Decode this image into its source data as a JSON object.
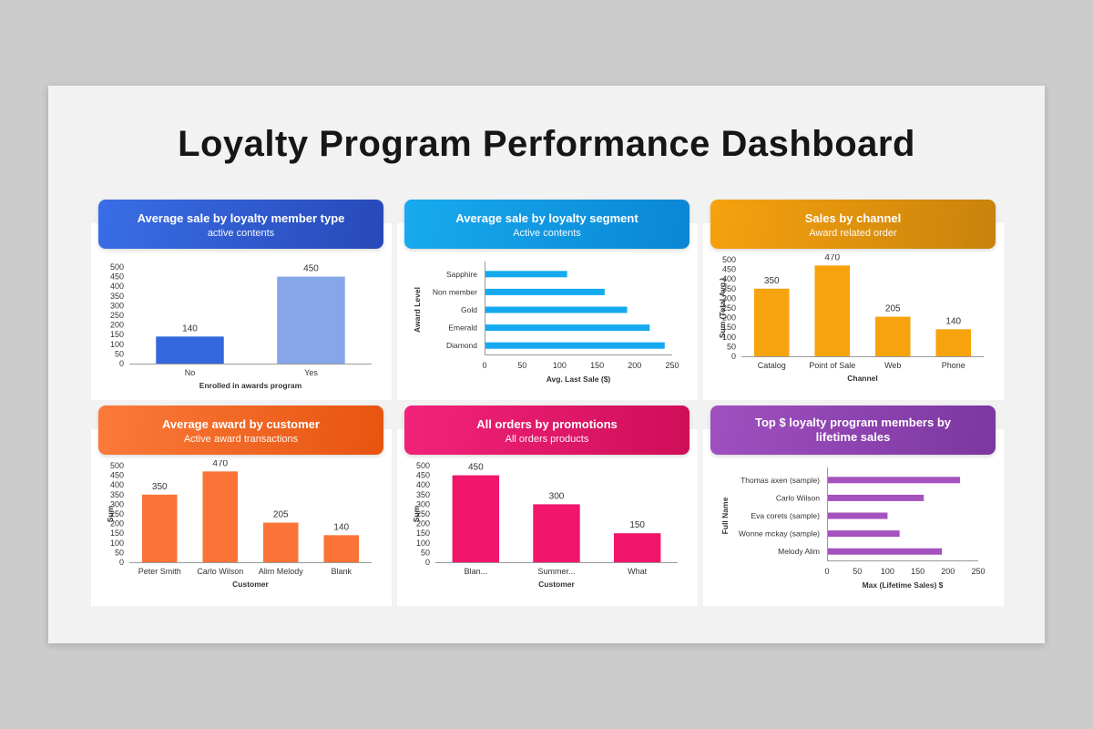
{
  "page": {
    "title": "Loyalty Program Performance Dashboard"
  },
  "cards": [
    {
      "title": "Average sale by loyalty member type",
      "subtitle": "active contents",
      "color1": "#3a6ee6",
      "color2": "#2749b8"
    },
    {
      "title": "Average sale by loyalty segment",
      "subtitle": "Active contents",
      "color1": "#18aaee",
      "color2": "#0a86d4"
    },
    {
      "title": "Sales by channel",
      "subtitle": "Award related order",
      "color1": "#f6a20e",
      "color2": "#c8820c"
    },
    {
      "title": "Average award by customer",
      "subtitle": "Active award transactions",
      "color1": "#fb7a3a",
      "color2": "#e7540f"
    },
    {
      "title": "All orders by promotions",
      "subtitle": "All orders products",
      "color1": "#f2237a",
      "color2": "#cf0e58"
    },
    {
      "title": "Top $ loyalty program members by lifetime sales",
      "subtitle": "",
      "color1": "#a050c0",
      "color2": "#7c37a0"
    }
  ],
  "chart_data": [
    {
      "type": "bar",
      "orientation": "vertical",
      "categories": [
        "No",
        "Yes"
      ],
      "values": [
        140,
        450
      ],
      "xlabel": "Enrolled in awards program",
      "ylabel": "",
      "ylim": [
        0,
        500
      ],
      "yticks": [
        0,
        50,
        100,
        150,
        200,
        250,
        300,
        350,
        400,
        450,
        500
      ],
      "colors": [
        "#3567dd",
        "#86a6e9"
      ],
      "data_labels": true
    },
    {
      "type": "bar",
      "orientation": "horizontal",
      "categories": [
        "Sapphire",
        "Non member",
        "Gold",
        "Emerald",
        "Diamond"
      ],
      "values": [
        110,
        160,
        190,
        220,
        240
      ],
      "xlabel": "Avg. Last Sale ($)",
      "ylabel": "Award Level",
      "xlim": [
        0,
        250
      ],
      "xticks": [
        0,
        50,
        100,
        150,
        200,
        250
      ],
      "color": "#15aaf0",
      "data_labels": false
    },
    {
      "type": "bar",
      "orientation": "vertical",
      "categories": [
        "Catalog",
        "Point of Sale",
        "Web",
        "Phone"
      ],
      "values": [
        350,
        470,
        205,
        140
      ],
      "xlabel": "Channel",
      "ylabel": "Sum (Total Avg.)",
      "ylim": [
        0,
        500
      ],
      "yticks": [
        0,
        50,
        100,
        150,
        200,
        250,
        300,
        350,
        400,
        450,
        500
      ],
      "color": "#f7a30d",
      "data_labels": true
    },
    {
      "type": "bar",
      "orientation": "vertical",
      "categories": [
        "Peter Smith",
        "Carlo Wilson",
        "Alim Melody",
        "Blank"
      ],
      "values": [
        350,
        470,
        205,
        140
      ],
      "xlabel": "Customer",
      "ylabel": "Sum",
      "ylim": [
        0,
        500
      ],
      "yticks": [
        0,
        50,
        100,
        150,
        200,
        250,
        300,
        350,
        400,
        450,
        500
      ],
      "color": "#fb7337",
      "data_labels": true
    },
    {
      "type": "bar",
      "orientation": "vertical",
      "categories": [
        "Blan...",
        "Summer...",
        "What"
      ],
      "values": [
        450,
        300,
        150
      ],
      "xlabel": "Customer",
      "ylabel": "Sum",
      "ylim": [
        0,
        500
      ],
      "yticks": [
        0,
        50,
        100,
        150,
        200,
        250,
        300,
        350,
        400,
        450,
        500
      ],
      "color": "#f1156b",
      "data_labels": true
    },
    {
      "type": "bar",
      "orientation": "horizontal",
      "categories": [
        "Thomas axen (sample)",
        "Carlo Wilson",
        "Eva corets (sample)",
        "Wonne mckay (sample)",
        "Melody Alim"
      ],
      "values": [
        220,
        160,
        100,
        120,
        190
      ],
      "xlabel": "Max (Lifetime Sales) $",
      "ylabel": "Full Name",
      "xlim": [
        0,
        250
      ],
      "xticks": [
        0,
        50,
        100,
        150,
        200,
        250
      ],
      "color": "#a452be",
      "data_labels": false
    }
  ]
}
